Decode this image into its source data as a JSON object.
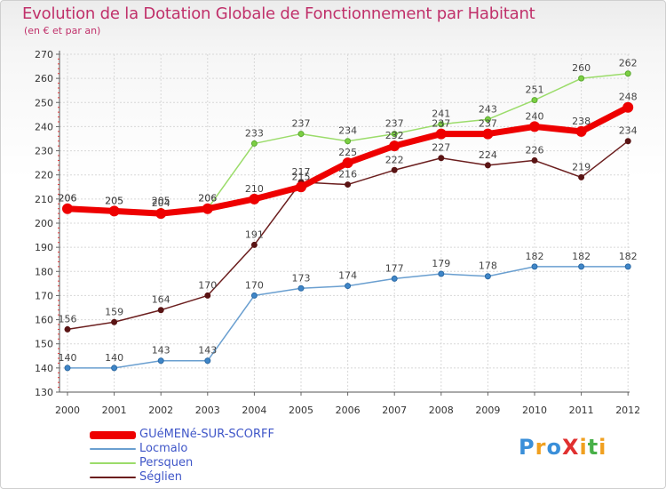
{
  "title": "Evolution de la Dotation Globale de Fonctionnement par Habitant",
  "subtitle": "(en € et par an)",
  "chart_data": {
    "type": "line",
    "title": "Evolution de la Dotation Globale de Fonctionnement par Habitant",
    "subtitle": "(en € et par an)",
    "xlabel": "",
    "ylabel": "",
    "x": [
      "2000",
      "2001",
      "2002",
      "2003",
      "2004",
      "2005",
      "2006",
      "2007",
      "2008",
      "2009",
      "2010",
      "2011",
      "2012"
    ],
    "ylim": [
      130,
      270
    ],
    "yticks": [
      130,
      140,
      150,
      160,
      170,
      180,
      190,
      200,
      210,
      220,
      230,
      240,
      250,
      260,
      270
    ],
    "grid": true,
    "series": [
      {
        "name": "Séglien",
        "color": "#6b1e1e",
        "values": [
          156,
          159,
          164,
          170,
          191,
          217,
          216,
          222,
          227,
          224,
          226,
          219,
          234
        ]
      },
      {
        "name": "Locmalo",
        "color": "#6a9fd0",
        "values": [
          140,
          140,
          143,
          143,
          170,
          173,
          174,
          177,
          179,
          178,
          182,
          182,
          182
        ]
      },
      {
        "name": "Persquen",
        "color": "#9bdc6a",
        "values": [
          206,
          205,
          205,
          206,
          233,
          237,
          234,
          237,
          241,
          243,
          251,
          260,
          262
        ]
      },
      {
        "name": "GUéMENé-SUR-SCORFF",
        "color": "#ee0000",
        "values": [
          206,
          205,
          204,
          206,
          210,
          215,
          225,
          232,
          237,
          237,
          240,
          238,
          248
        ]
      }
    ],
    "legend": [
      {
        "name": "GUéMENé-SUR-SCORFF",
        "color": "#ee0000"
      },
      {
        "name": "Locmalo",
        "color": "#6a9fd0"
      },
      {
        "name": "Persquen",
        "color": "#9bdc6a"
      },
      {
        "name": "Séglien",
        "color": "#6b1e1e"
      }
    ],
    "legend_position": "bottom-left"
  },
  "logo": {
    "text": "ProXiti",
    "letters": [
      {
        "ch": "P",
        "color": "#3a8fd9"
      },
      {
        "ch": "r",
        "color": "#f0a020"
      },
      {
        "ch": "o",
        "color": "#3a8fd9"
      },
      {
        "ch": "X",
        "color": "#e03030"
      },
      {
        "ch": "i",
        "color": "#f0a020"
      },
      {
        "ch": "t",
        "color": "#48b048"
      },
      {
        "ch": "i",
        "color": "#f0a020"
      }
    ]
  }
}
